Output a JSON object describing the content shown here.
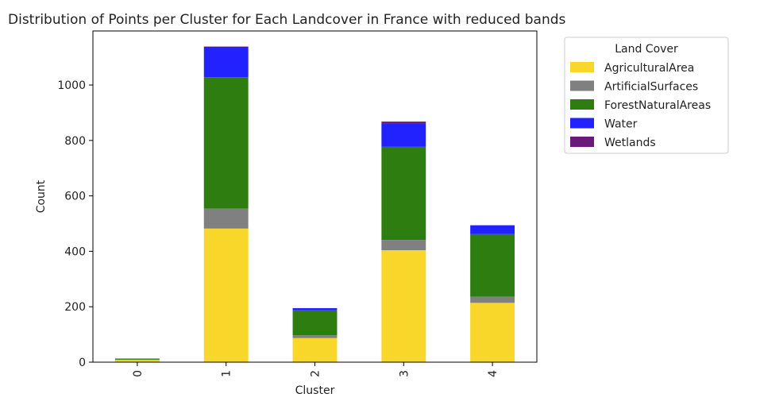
{
  "chart_data": {
    "type": "bar",
    "stacked": true,
    "title": "Distribution of Points per Cluster for Each Landcover in France with reduced bands",
    "xlabel": "Cluster",
    "ylabel": "Count",
    "categories": [
      "0",
      "1",
      "2",
      "3",
      "4"
    ],
    "ylim": [
      0,
      1195
    ],
    "yticks": [
      0,
      200,
      400,
      600,
      800,
      1000
    ],
    "yticklabels": [
      "0",
      "200",
      "400",
      "600",
      "800",
      "1000"
    ],
    "grid": false,
    "legend": {
      "title": "Land Cover",
      "position": "outside upper right"
    },
    "series": [
      {
        "name": "AgriculturalArea",
        "color": "#f8d62a",
        "values": [
          8,
          482,
          87,
          404,
          214
        ]
      },
      {
        "name": "ArtificialSurfaces",
        "color": "#808080",
        "values": [
          1,
          72,
          10,
          37,
          22
        ]
      },
      {
        "name": "ForestNaturalAreas",
        "color": "#2e7d10",
        "values": [
          4,
          474,
          90,
          336,
          226
        ]
      },
      {
        "name": "Water",
        "color": "#2222ff",
        "values": [
          0,
          110,
          8,
          83,
          32
        ]
      },
      {
        "name": "Wetlands",
        "color": "#6a1b7a",
        "values": [
          0,
          1,
          0,
          8,
          0
        ]
      }
    ]
  }
}
